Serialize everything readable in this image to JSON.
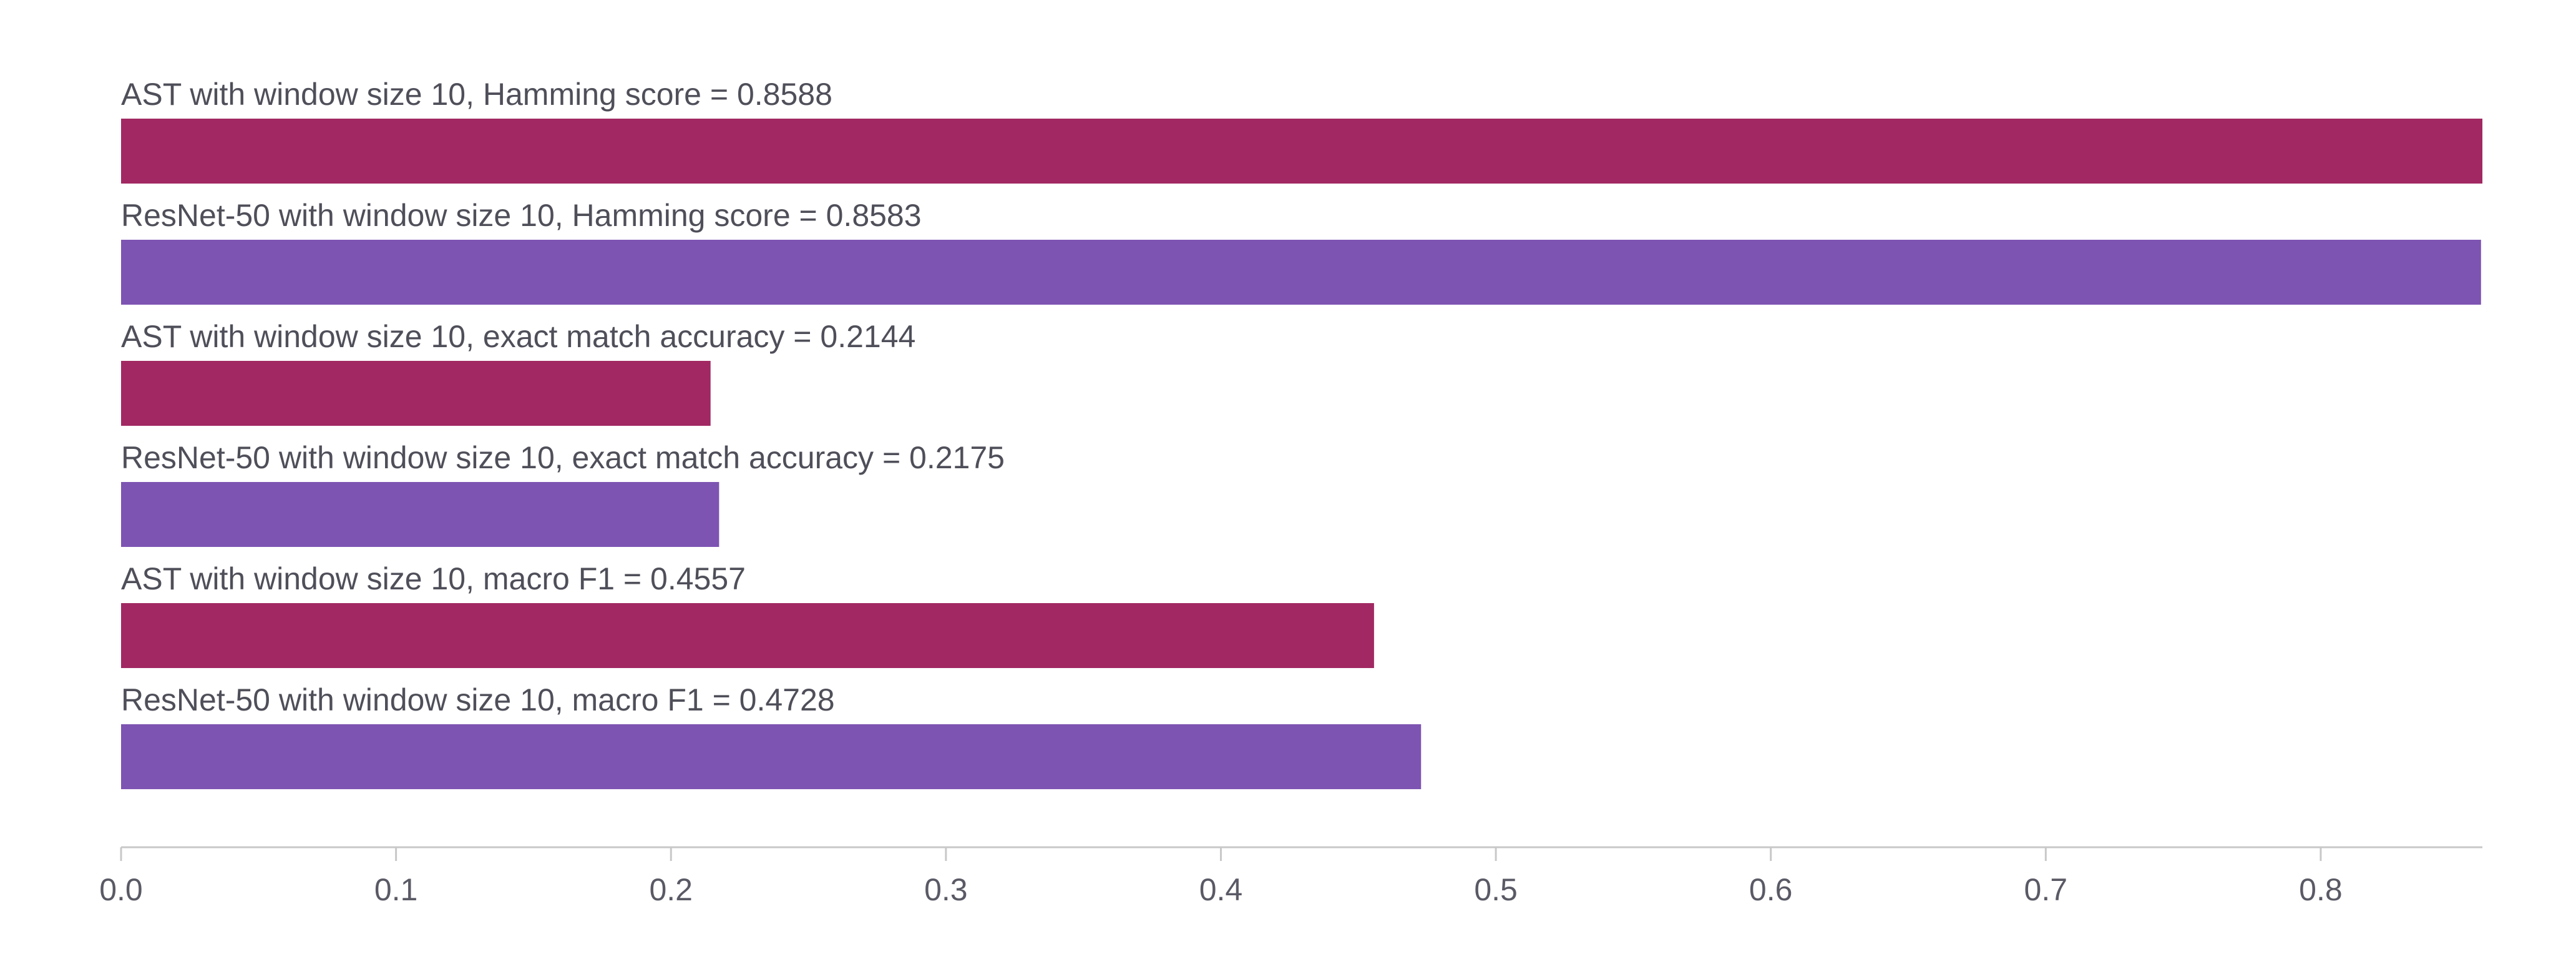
{
  "chart_data": {
    "type": "bar",
    "orientation": "horizontal",
    "bars": [
      {
        "label": "AST with window size 10, Hamming score = 0.8588",
        "value": 0.8588,
        "model": "AST"
      },
      {
        "label": "ResNet-50 with window size 10, Hamming score = 0.8583",
        "value": 0.8583,
        "model": "ResNet-50"
      },
      {
        "label": "AST with window size 10, exact match accuracy = 0.2144",
        "value": 0.2144,
        "model": "AST"
      },
      {
        "label": "ResNet-50 with window size 10, exact match accuracy = 0.2175",
        "value": 0.2175,
        "model": "ResNet-50"
      },
      {
        "label": "AST with window size 10, macro F1 = 0.4557",
        "value": 0.4557,
        "model": "AST"
      },
      {
        "label": "ResNet-50 with window size 10, macro F1 = 0.4728",
        "value": 0.4728,
        "model": "ResNet-50"
      }
    ],
    "xlim": [
      0,
      0.8588
    ],
    "x_ticks": [
      "0.0",
      "0.1",
      "0.2",
      "0.3",
      "0.4",
      "0.5",
      "0.6",
      "0.7",
      "0.8"
    ],
    "colors": {
      "AST": "#a12862",
      "ResNet-50": "#7d54b2"
    },
    "grid": false,
    "legend": "none"
  }
}
